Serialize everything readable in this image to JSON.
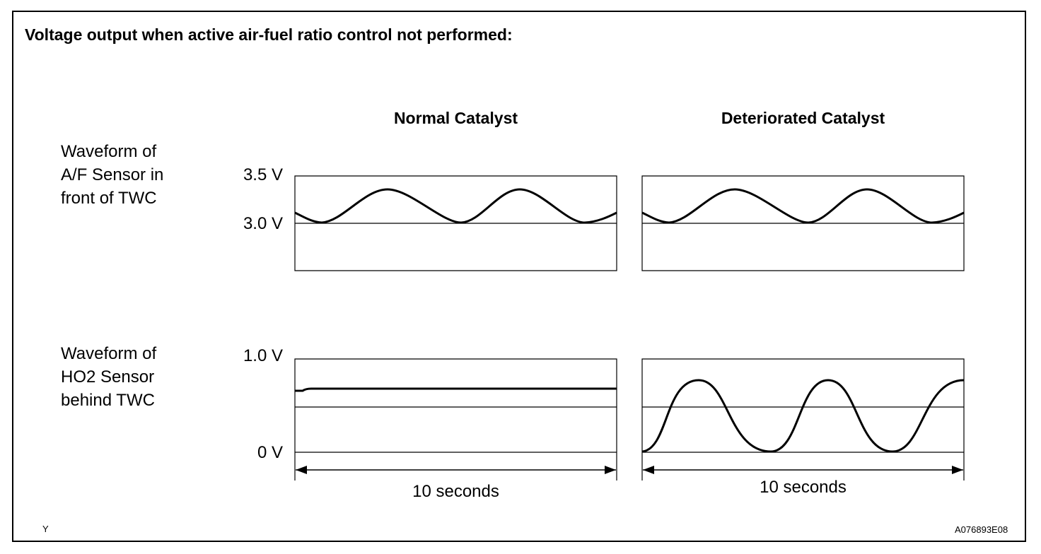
{
  "title": "Voltage output when active air-fuel ratio control not performed:",
  "columns": [
    "Normal Catalyst",
    "Deteriorated Catalyst"
  ],
  "rows": [
    {
      "label_lines": [
        "Waveform of",
        "A/F Sensor in",
        "front of TWC"
      ],
      "axis_top": "3.5 V",
      "axis_ref": "3.0 V"
    },
    {
      "label_lines": [
        "Waveform of",
        "HO2 Sensor",
        "behind TWC"
      ],
      "axis_top": "1.0 V",
      "axis_bottom": "0 V"
    }
  ],
  "time_label": "10 seconds",
  "footer_left": "Y",
  "footer_right": "A076893E08"
}
